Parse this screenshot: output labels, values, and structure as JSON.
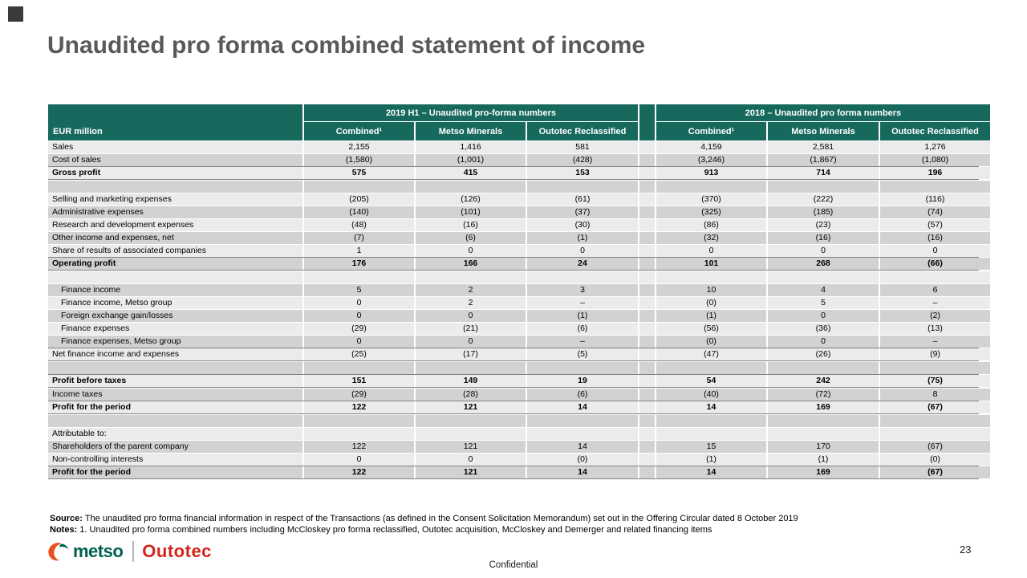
{
  "slide": {
    "title": "Unaudited pro forma combined statement of income",
    "page_number": "23",
    "classification": "Confidential"
  },
  "colors": {
    "teal": "#17695e",
    "row_light": "#ebebeb",
    "row_dark": "#d2d2d2",
    "border_dark": "#828282",
    "title_gray": "#595959",
    "metso_green": "#005f51",
    "outotec_red": "#d2251d"
  },
  "table": {
    "corner_header": "EUR million",
    "groups": [
      {
        "title": "2019 H1 – Unaudited pro-forma numbers",
        "columns": [
          "Combined¹",
          "Metso Minerals",
          "Outotec Reclassified"
        ]
      },
      {
        "title": "2018 – Unaudited pro forma numbers",
        "columns": [
          "Combined¹",
          "Metso Minerals",
          "Outotec Reclassified"
        ]
      }
    ],
    "rows": [
      {
        "label": "Sales",
        "values": [
          "2,155",
          "1,416",
          "581",
          "4,159",
          "2,581",
          "1,276"
        ]
      },
      {
        "label": "Cost of sales",
        "values": [
          "(1,580)",
          "(1,001)",
          "(428)",
          "(3,246)",
          "(1,867)",
          "(1,080)"
        ]
      },
      {
        "label": "Gross profit",
        "bold": true,
        "border": true,
        "values": [
          "575",
          "415",
          "153",
          "913",
          "714",
          "196"
        ]
      },
      {
        "label": "",
        "blank": true,
        "values": [
          "",
          "",
          "",
          "",
          "",
          ""
        ]
      },
      {
        "label": "Selling and marketing expenses",
        "values": [
          "(205)",
          "(126)",
          "(61)",
          "(370)",
          "(222)",
          "(116)"
        ]
      },
      {
        "label": "Administrative expenses",
        "values": [
          "(140)",
          "(101)",
          "(37)",
          "(325)",
          "(185)",
          "(74)"
        ]
      },
      {
        "label": "Research and development expenses",
        "values": [
          "(48)",
          "(16)",
          "(30)",
          "(86)",
          "(23)",
          "(57)"
        ]
      },
      {
        "label": "Other income and expenses, net",
        "values": [
          "(7)",
          "(6)",
          "(1)",
          "(32)",
          "(16)",
          "(16)"
        ]
      },
      {
        "label": "Share of results of associated companies",
        "values": [
          "1",
          "0",
          "0",
          "0",
          "0",
          "0"
        ]
      },
      {
        "label": "Operating profit",
        "bold": true,
        "border": true,
        "values": [
          "176",
          "166",
          "24",
          "101",
          "268",
          "(66)"
        ]
      },
      {
        "label": "",
        "blank": true,
        "values": [
          "",
          "",
          "",
          "",
          "",
          ""
        ]
      },
      {
        "label": "Finance income",
        "indent": true,
        "values": [
          "5",
          "2",
          "3",
          "10",
          "4",
          "6"
        ]
      },
      {
        "label": "Finance income, Metso group",
        "indent": true,
        "values": [
          "0",
          "2",
          "–",
          "(0)",
          "5",
          "–"
        ]
      },
      {
        "label": "Foreign exchange gain/losses",
        "indent": true,
        "values": [
          "0",
          "0",
          "(1)",
          "(1)",
          "0",
          "(2)"
        ]
      },
      {
        "label": "Finance expenses",
        "indent": true,
        "values": [
          "(29)",
          "(21)",
          "(6)",
          "(56)",
          "(36)",
          "(13)"
        ]
      },
      {
        "label": "Finance expenses, Metso group",
        "indent": true,
        "values": [
          "0",
          "0",
          "–",
          "(0)",
          "0",
          "–"
        ]
      },
      {
        "label": "Net finance income and expenses",
        "border": true,
        "values": [
          "(25)",
          "(17)",
          "(5)",
          "(47)",
          "(26)",
          "(9)"
        ]
      },
      {
        "label": "",
        "blank": true,
        "values": [
          "",
          "",
          "",
          "",
          "",
          ""
        ]
      },
      {
        "label": "Profit before taxes",
        "bold": true,
        "border": true,
        "values": [
          "151",
          "149",
          "19",
          "54",
          "242",
          "(75)"
        ]
      },
      {
        "label": "Income taxes",
        "values": [
          "(29)",
          "(28)",
          "(6)",
          "(40)",
          "(72)",
          "8"
        ]
      },
      {
        "label": "Profit for the period",
        "bold": true,
        "border": true,
        "values": [
          "122",
          "121",
          "14",
          "14",
          "169",
          "(67)"
        ]
      },
      {
        "label": "",
        "blank": true,
        "values": [
          "",
          "",
          "",
          "",
          "",
          ""
        ]
      },
      {
        "label": "Attributable to:",
        "values": [
          "",
          "",
          "",
          "",
          "",
          ""
        ]
      },
      {
        "label": "Shareholders of the parent company",
        "values": [
          "122",
          "121",
          "14",
          "15",
          "170",
          "(67)"
        ]
      },
      {
        "label": "Non-controlling interests",
        "values": [
          "0",
          "0",
          "(0)",
          "(1)",
          "(1)",
          "(0)"
        ]
      },
      {
        "label": "Profit for the period",
        "bold": true,
        "border": true,
        "values": [
          "122",
          "121",
          "14",
          "14",
          "169",
          "(67)"
        ]
      }
    ]
  },
  "footnotes": {
    "source_label": "Source:",
    "source_text": " The unaudited pro forma financial information in respect of the Transactions (as defined in the Consent Solicitation Memorandum) set out in the Offering Circular dated 8 October 2019",
    "notes_label": "Notes:",
    "notes_text": " 1. Unaudited pro forma combined numbers including McCloskey pro forma reclassified, Outotec acquisition, McCloskey and Demerger and related financing items"
  },
  "logos": {
    "metso": "metso",
    "outotec": "Outotec"
  }
}
